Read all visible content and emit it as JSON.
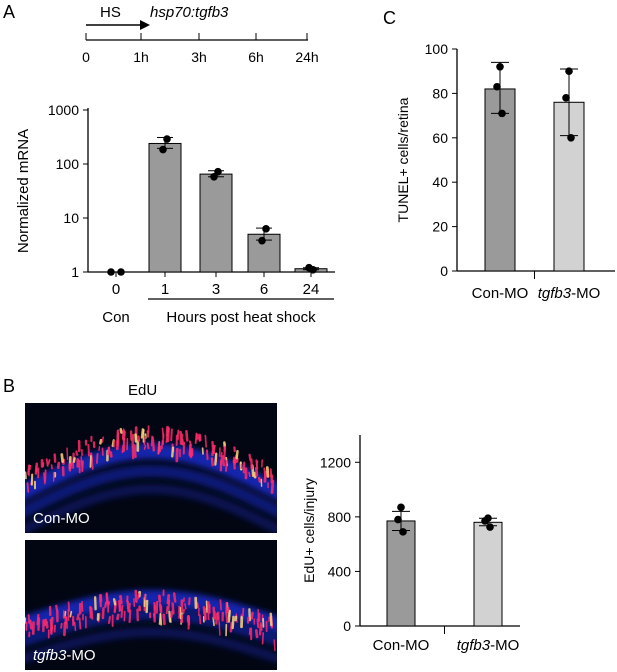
{
  "panels": {
    "a": "A",
    "b": "B",
    "c": "C"
  },
  "timeline": {
    "hs_label": "HS",
    "construct": "hsp70:tgfb3",
    "ticks": [
      "0",
      "1h",
      "3h",
      "6h",
      "24h"
    ]
  },
  "colors": {
    "bar_dark": "#9a9a9a",
    "bar_light": "#d2d2d2",
    "dot": "#000000",
    "nuclei": "#1428c8",
    "edu": "#ff2a6a"
  },
  "microscopy": {
    "title": "EdU",
    "top_label": "Con-MO",
    "bottom_label_italic": "tgfb3",
    "bottom_label_rest": "-MO"
  },
  "chart_data": [
    {
      "id": "A",
      "type": "bar",
      "scale": "log",
      "ylabel": "Normalized  mRNA",
      "ylim": [
        1,
        1000
      ],
      "yticks": [
        1,
        10,
        100,
        1000
      ],
      "categories": [
        "0",
        "1",
        "3",
        "6",
        "24"
      ],
      "values": [
        1.0,
        240,
        65,
        5,
        1.15
      ],
      "error_high": [
        1.0,
        310,
        75,
        6.5,
        1.2
      ],
      "error_low": [
        1.0,
        195,
        58,
        3.9,
        1.1
      ],
      "points": [
        [
          1.0,
          1.0
        ],
        [
          185,
          290
        ],
        [
          58,
          72
        ],
        [
          3.8,
          6.3
        ],
        [
          1.2,
          1.1
        ]
      ],
      "group_labels": {
        "con": "Con",
        "hours": "Hours post heat shock"
      }
    },
    {
      "id": "B",
      "type": "bar",
      "ylabel": "EdU+ cells/injury",
      "ylim": [
        0,
        1400
      ],
      "yticks": [
        0,
        400,
        800,
        1200
      ],
      "categories_italic": [
        "",
        "tgfb3"
      ],
      "categories": [
        "Con-MO",
        "-MO"
      ],
      "values": [
        770,
        760
      ],
      "error_high": [
        840,
        790
      ],
      "error_low": [
        700,
        735
      ],
      "points": [
        [
          870,
          780,
          690
        ],
        [
          790,
          770,
          725
        ]
      ]
    },
    {
      "id": "C",
      "type": "bar",
      "ylabel": "TUNEL+ cells/retina",
      "ylim": [
        0,
        100
      ],
      "yticks": [
        0,
        20,
        40,
        60,
        80,
        100
      ],
      "categories_italic": [
        "",
        "tgfb3"
      ],
      "categories": [
        "Con-MO",
        "-MO"
      ],
      "values": [
        82,
        76
      ],
      "error_high": [
        94,
        91
      ],
      "error_low": [
        71,
        61
      ],
      "points": [
        [
          92,
          83,
          71
        ],
        [
          90,
          78,
          60
        ]
      ]
    }
  ]
}
